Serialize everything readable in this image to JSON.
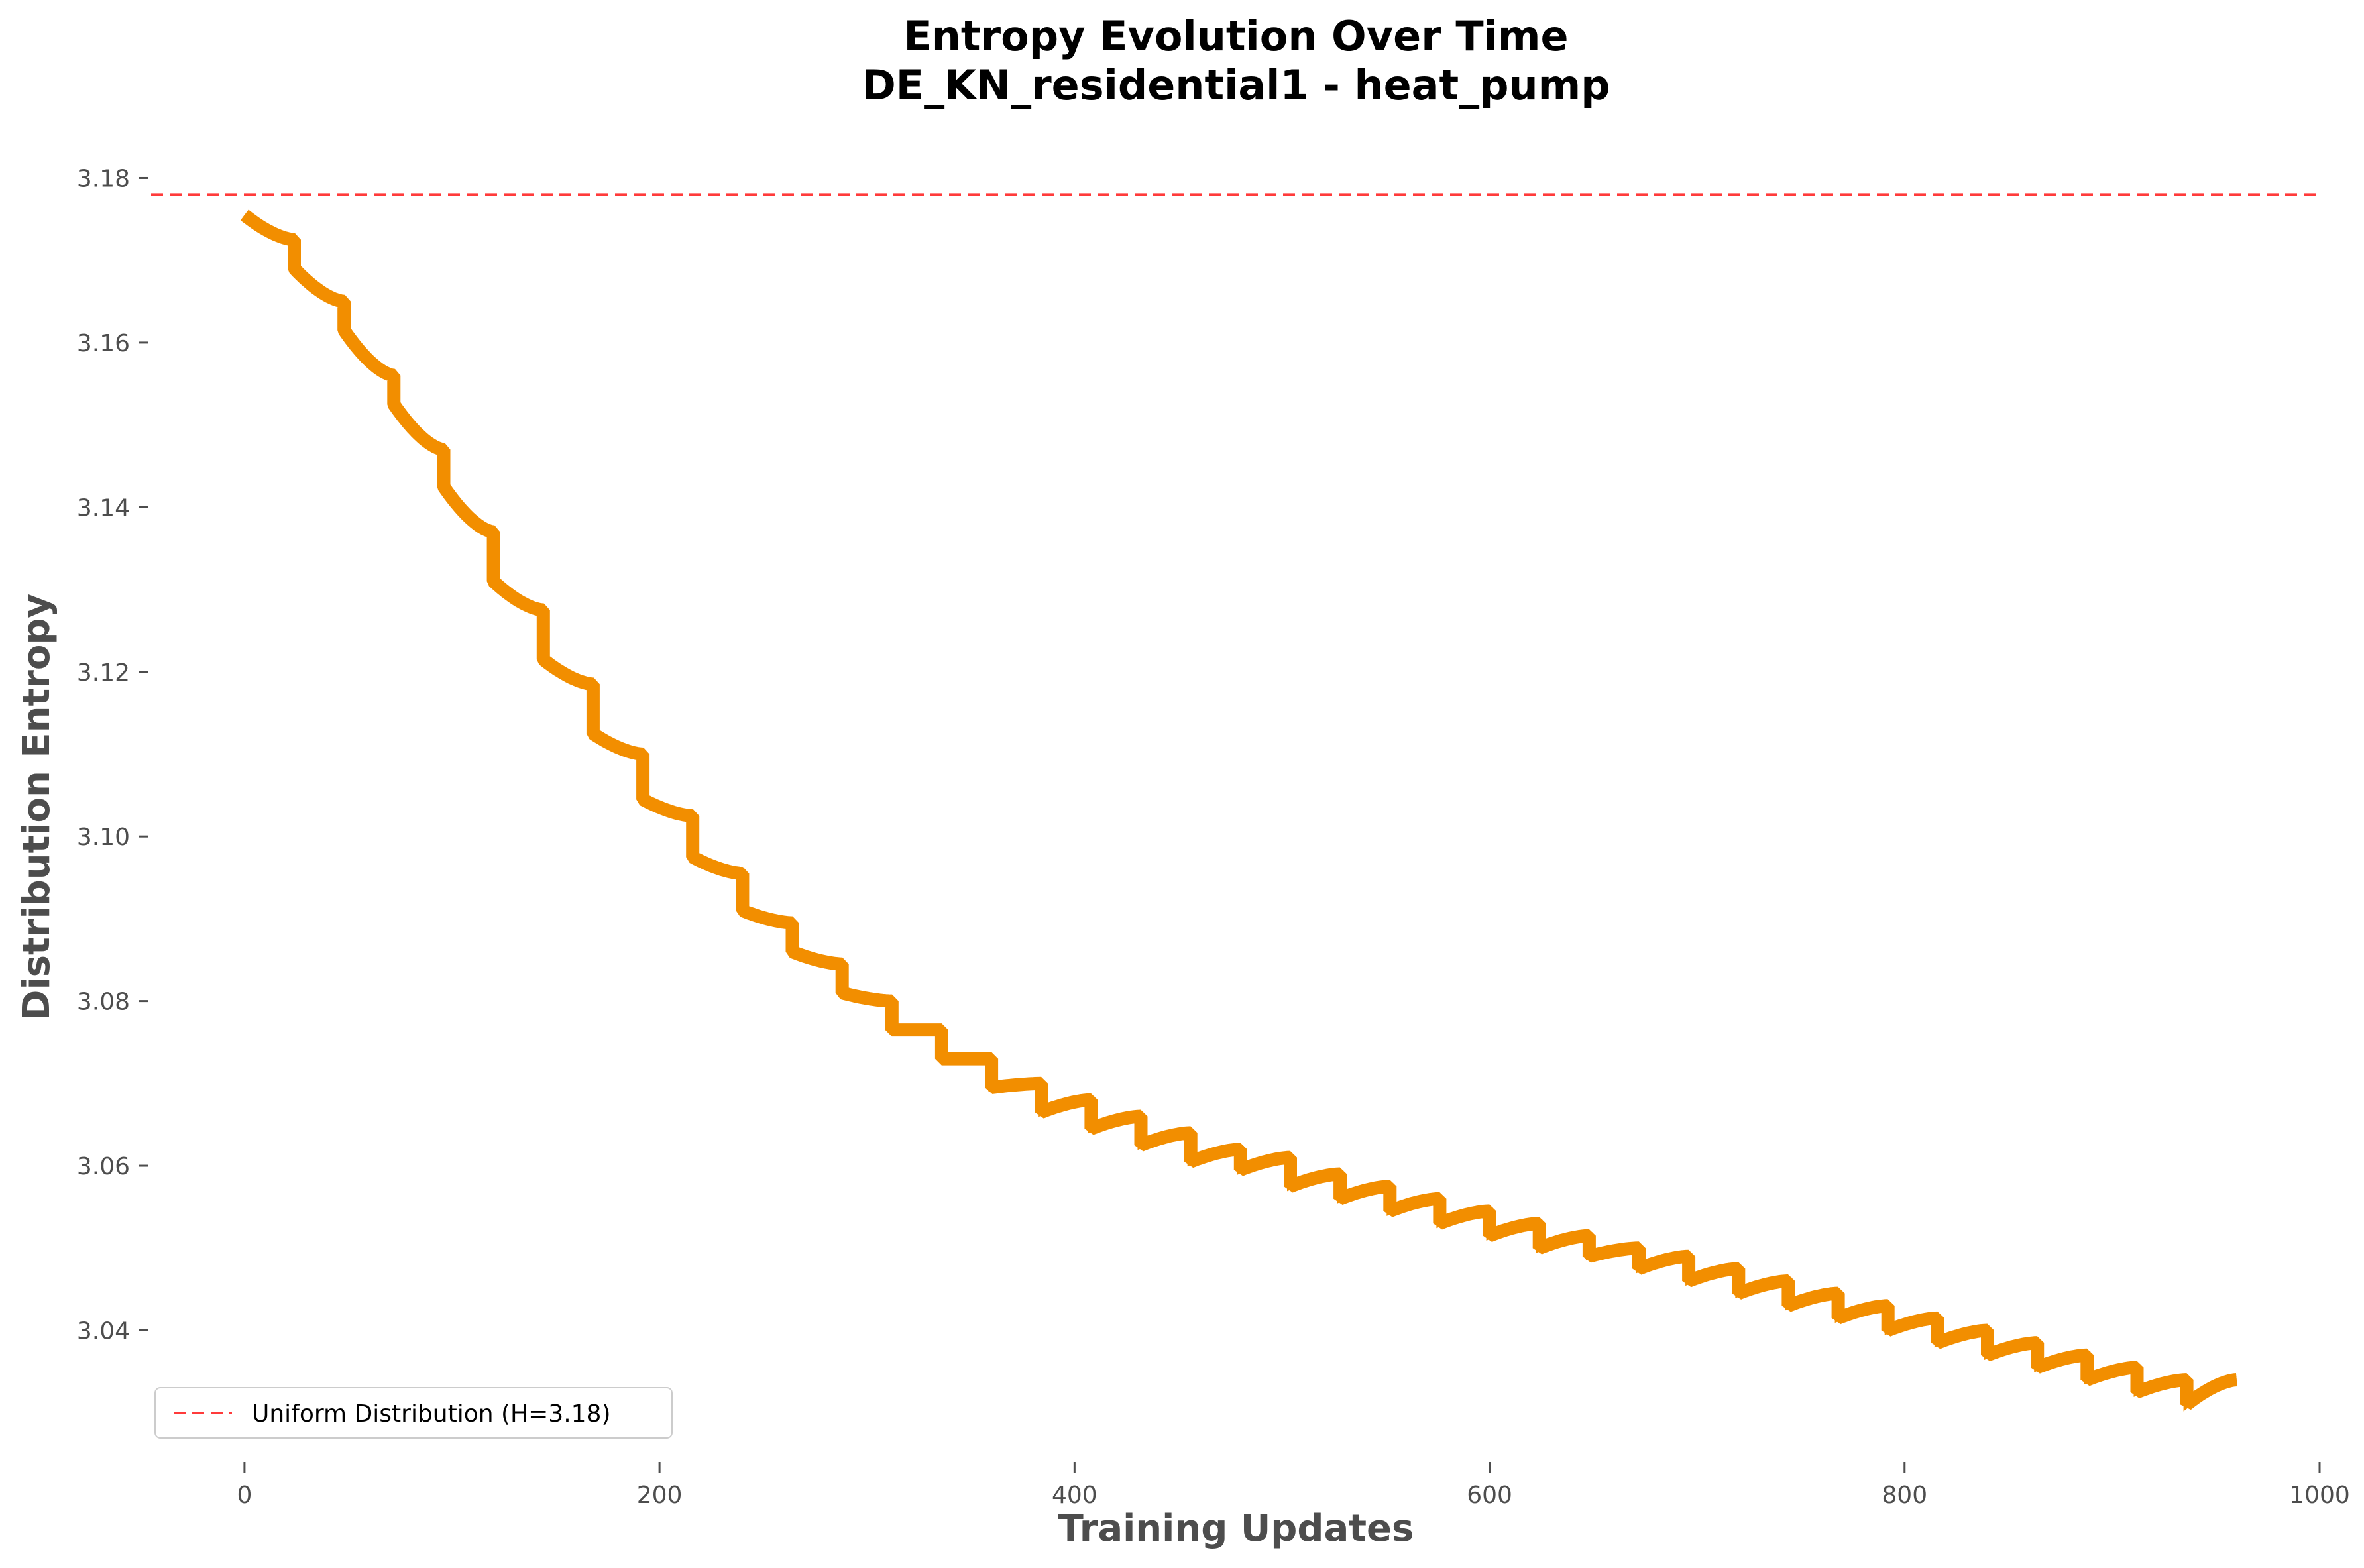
{
  "chart_data": {
    "type": "line",
    "title_line1": "Entropy Evolution Over Time",
    "title_line2": "DE_KN_residential1 - heat_pump",
    "xlabel": "Training Updates",
    "ylabel": "Distribution Entropy",
    "xlim": [
      -45,
      1000
    ],
    "ylim": [
      3.0245,
      3.1835
    ],
    "xticks": [
      0,
      200,
      400,
      600,
      800,
      1000
    ],
    "yticks": [
      3.04,
      3.06,
      3.08,
      3.1,
      3.12,
      3.14,
      3.16,
      3.18
    ],
    "grid": false,
    "legend_position": "lower-left",
    "reference_line": {
      "name": "Uniform Distribution (H=3.18)",
      "y": 3.178,
      "style": "dashed",
      "color": "#ff3b3b"
    },
    "series": [
      {
        "color": "#f28e00",
        "style": "sawtooth",
        "period_updates": 24,
        "x_start": 0,
        "x_end": 960,
        "points": [
          {
            "x": 0,
            "start": 3.1755,
            "end": 3.1725
          },
          {
            "x": 24,
            "start": 3.169,
            "end": 3.165
          },
          {
            "x": 48,
            "start": 3.1615,
            "end": 3.156
          },
          {
            "x": 72,
            "start": 3.1525,
            "end": 3.147
          },
          {
            "x": 96,
            "start": 3.1425,
            "end": 3.137
          },
          {
            "x": 120,
            "start": 3.131,
            "end": 3.1275
          },
          {
            "x": 144,
            "start": 3.1215,
            "end": 3.1185
          },
          {
            "x": 168,
            "start": 3.1125,
            "end": 3.11
          },
          {
            "x": 192,
            "start": 3.1045,
            "end": 3.1025
          },
          {
            "x": 216,
            "start": 3.0975,
            "end": 3.0955
          },
          {
            "x": 240,
            "start": 3.091,
            "end": 3.0895
          },
          {
            "x": 264,
            "start": 3.086,
            "end": 3.0845
          },
          {
            "x": 288,
            "start": 3.081,
            "end": 3.08
          },
          {
            "x": 312,
            "start": 3.0765,
            "end": 3.0765
          },
          {
            "x": 336,
            "start": 3.073,
            "end": 3.073
          },
          {
            "x": 360,
            "start": 3.0695,
            "end": 3.07
          },
          {
            "x": 384,
            "start": 3.0665,
            "end": 3.068
          },
          {
            "x": 408,
            "start": 3.0645,
            "end": 3.066
          },
          {
            "x": 432,
            "start": 3.0625,
            "end": 3.064
          },
          {
            "x": 456,
            "start": 3.0605,
            "end": 3.062
          },
          {
            "x": 480,
            "start": 3.0595,
            "end": 3.061
          },
          {
            "x": 504,
            "start": 3.0575,
            "end": 3.059
          },
          {
            "x": 528,
            "start": 3.056,
            "end": 3.0575
          },
          {
            "x": 552,
            "start": 3.0545,
            "end": 3.056
          },
          {
            "x": 576,
            "start": 3.053,
            "end": 3.0545
          },
          {
            "x": 600,
            "start": 3.0515,
            "end": 3.053
          },
          {
            "x": 624,
            "start": 3.05,
            "end": 3.0515
          },
          {
            "x": 648,
            "start": 3.049,
            "end": 3.05
          },
          {
            "x": 672,
            "start": 3.0475,
            "end": 3.049
          },
          {
            "x": 696,
            "start": 3.046,
            "end": 3.0475
          },
          {
            "x": 720,
            "start": 3.0445,
            "end": 3.046
          },
          {
            "x": 744,
            "start": 3.043,
            "end": 3.0445
          },
          {
            "x": 768,
            "start": 3.0415,
            "end": 3.043
          },
          {
            "x": 792,
            "start": 3.04,
            "end": 3.0415
          },
          {
            "x": 816,
            "start": 3.0385,
            "end": 3.04
          },
          {
            "x": 840,
            "start": 3.037,
            "end": 3.0385
          },
          {
            "x": 864,
            "start": 3.0355,
            "end": 3.037
          },
          {
            "x": 888,
            "start": 3.034,
            "end": 3.0355
          },
          {
            "x": 912,
            "start": 3.0325,
            "end": 3.034
          },
          {
            "x": 936,
            "start": 3.031,
            "end": 3.034
          }
        ]
      }
    ]
  }
}
